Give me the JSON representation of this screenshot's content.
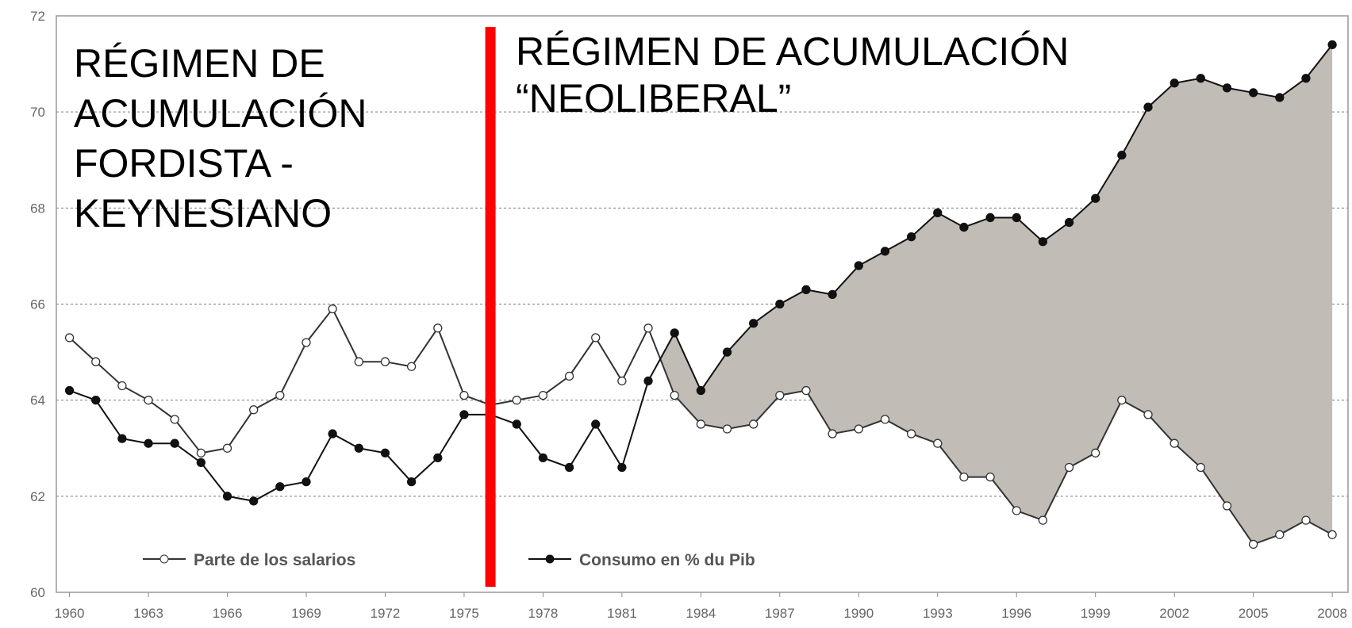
{
  "chart_data": {
    "type": "line",
    "x": [
      1960,
      1961,
      1962,
      1963,
      1964,
      1965,
      1966,
      1967,
      1968,
      1969,
      1970,
      1971,
      1972,
      1973,
      1974,
      1975,
      1976,
      1977,
      1978,
      1979,
      1980,
      1981,
      1982,
      1983,
      1984,
      1985,
      1986,
      1987,
      1988,
      1989,
      1990,
      1991,
      1992,
      1993,
      1994,
      1995,
      1996,
      1997,
      1998,
      1999,
      2000,
      2001,
      2002,
      2003,
      2004,
      2005,
      2006,
      2007,
      2008
    ],
    "series": [
      {
        "name": "Parte de los salarios",
        "color": "#333333",
        "marker": "open",
        "values": [
          65.3,
          64.8,
          64.3,
          64.0,
          63.6,
          62.9,
          63.0,
          63.8,
          64.1,
          65.2,
          65.9,
          64.8,
          64.8,
          64.7,
          65.5,
          64.1,
          63.9,
          64.0,
          64.1,
          64.5,
          65.3,
          64.4,
          65.5,
          64.1,
          63.5,
          63.4,
          63.5,
          64.1,
          64.2,
          63.3,
          63.4,
          63.6,
          63.3,
          63.1,
          62.4,
          62.4,
          61.7,
          61.5,
          62.6,
          62.9,
          64.0,
          63.7,
          63.1,
          62.6,
          61.8,
          61.0,
          61.2,
          61.5,
          61.2
        ]
      },
      {
        "name": "Consumo en % du Pib",
        "color": "#111111",
        "marker": "filled",
        "values": [
          64.2,
          64.0,
          63.2,
          63.1,
          63.1,
          62.7,
          62.0,
          61.9,
          62.2,
          62.3,
          63.3,
          63.0,
          62.9,
          62.3,
          62.8,
          63.7,
          63.7,
          63.5,
          62.8,
          62.6,
          63.5,
          62.6,
          64.4,
          65.4,
          64.2,
          65.0,
          65.6,
          66.0,
          66.3,
          66.2,
          66.8,
          67.1,
          67.4,
          67.9,
          67.6,
          67.8,
          67.8,
          67.3,
          67.7,
          68.2,
          69.1,
          70.1,
          70.6,
          70.7,
          70.5,
          70.4,
          70.3,
          70.7,
          71.4
        ]
      }
    ],
    "shade_color": "#c1bcb5",
    "xlim": [
      1959.5,
      2008.6
    ],
    "xticks": [
      1960,
      1963,
      1966,
      1969,
      1972,
      1975,
      1978,
      1981,
      1984,
      1987,
      1990,
      1993,
      1996,
      1999,
      2002,
      2005,
      2008
    ],
    "ylim": [
      60,
      72
    ],
    "yticks": [
      60,
      62,
      64,
      66,
      68,
      70,
      72
    ],
    "grid": true,
    "divider": {
      "x": 1976,
      "color": "#ff0000"
    },
    "annotations": [
      {
        "lines": [
          "RÉGIMEN DE",
          "ACUMULACIÓN",
          "FORDISTA -",
          "KEYNESIANO"
        ]
      },
      {
        "lines": [
          "RÉGIMEN DE ACUMULACIÓN",
          "“NEOLIBERAL”"
        ]
      }
    ]
  }
}
